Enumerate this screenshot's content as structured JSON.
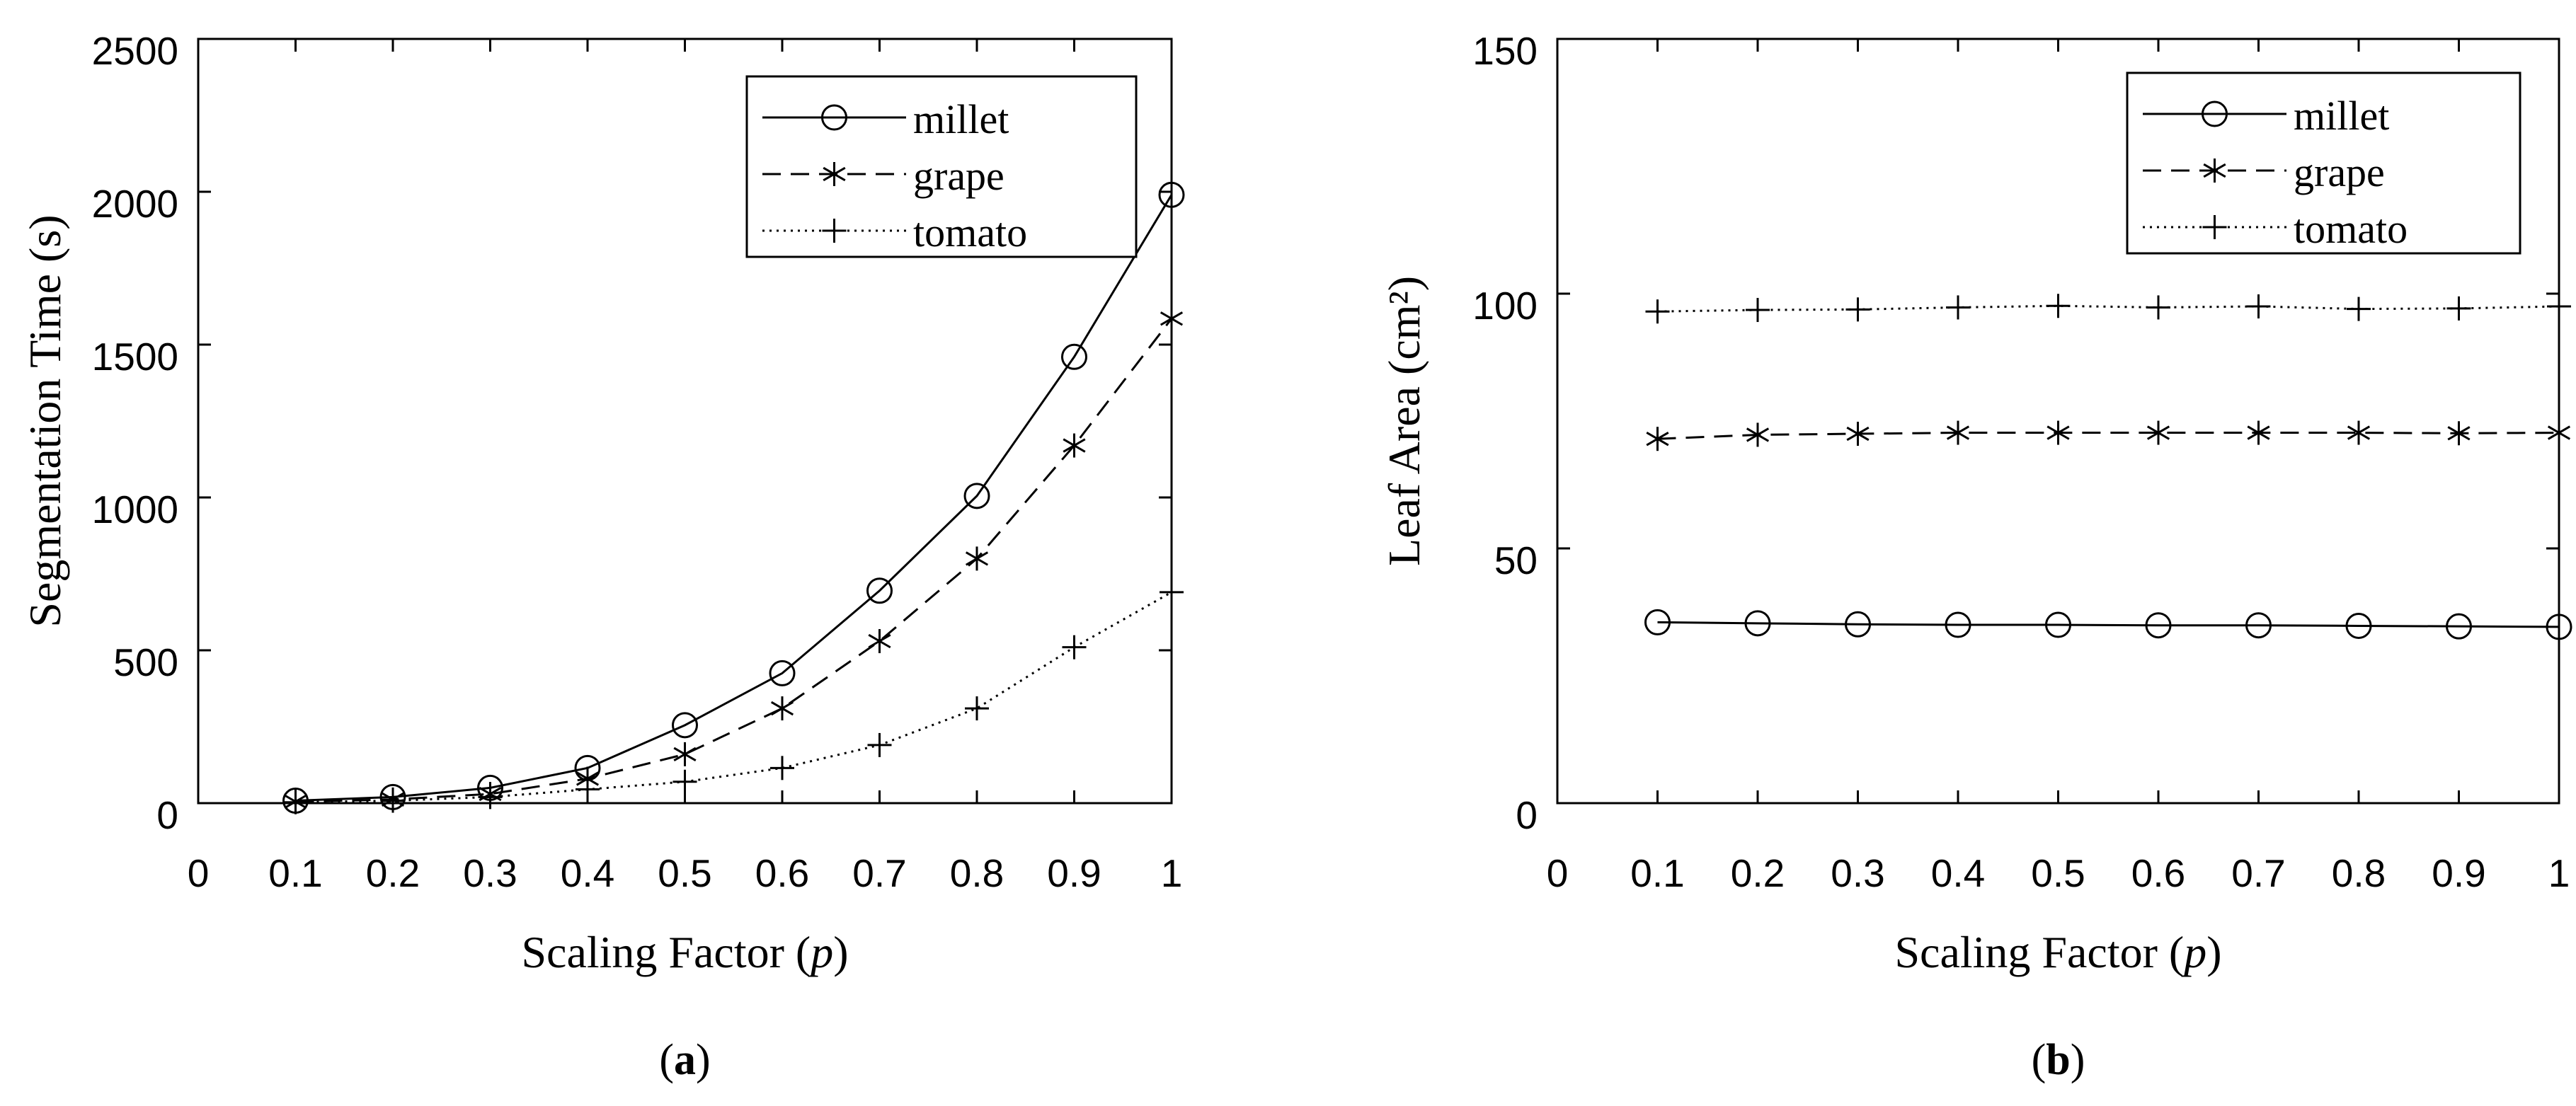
{
  "chart_data": [
    {
      "type": "line",
      "panel": "a",
      "caption_label": "a",
      "xlabel_prefix": "Scaling Factor (",
      "xlabel_var": "p",
      "xlabel_suffix": ")",
      "ylabel": "Segmentation Time (s)",
      "xlim": [
        0,
        1
      ],
      "ylim": [
        0,
        2500
      ],
      "xticks": [
        0,
        0.1,
        0.2,
        0.3,
        0.4,
        0.5,
        0.6,
        0.7,
        0.8,
        0.9,
        1
      ],
      "xtick_labels": [
        "0",
        "0.1",
        "0.2",
        "0.3",
        "0.4",
        "0.5",
        "0.6",
        "0.7",
        "0.8",
        "0.9",
        "1"
      ],
      "yticks": [
        0,
        500,
        1000,
        1500,
        2000,
        2500
      ],
      "ytick_labels": [
        "0",
        "500",
        "1000",
        "1500",
        "2000",
        "2500"
      ],
      "grid": false,
      "legend_position": "top-right",
      "x": [
        0.1,
        0.2,
        0.3,
        0.4,
        0.5,
        0.6,
        0.7,
        0.8,
        0.9,
        1.0
      ],
      "series": [
        {
          "name": "millet",
          "line": "solid",
          "marker": "circle",
          "values": [
            8,
            20,
            50,
            115,
            255,
            425,
            695,
            1005,
            1460,
            1990
          ]
        },
        {
          "name": "grape",
          "line": "dashed",
          "marker": "asterisk",
          "values": [
            5,
            12,
            30,
            80,
            160,
            310,
            530,
            800,
            1170,
            1585
          ]
        },
        {
          "name": "tomato",
          "line": "dotted",
          "marker": "plus",
          "values": [
            3,
            8,
            20,
            45,
            70,
            115,
            190,
            310,
            510,
            690
          ]
        }
      ]
    },
    {
      "type": "line",
      "panel": "b",
      "caption_label": "b",
      "xlabel_prefix": "Scaling Factor (",
      "xlabel_var": "p",
      "xlabel_suffix": ")",
      "ylabel": "Leaf Area (cm²)",
      "xlim": [
        0,
        1
      ],
      "ylim": [
        0,
        150
      ],
      "xticks": [
        0,
        0.1,
        0.2,
        0.3,
        0.4,
        0.5,
        0.6,
        0.7,
        0.8,
        0.9,
        1
      ],
      "xtick_labels": [
        "0",
        "0.1",
        "0.2",
        "0.3",
        "0.4",
        "0.5",
        "0.6",
        "0.7",
        "0.8",
        "0.9",
        "1"
      ],
      "yticks": [
        0,
        50,
        100,
        150
      ],
      "ytick_labels": [
        "0",
        "50",
        "100",
        "150"
      ],
      "grid": false,
      "legend_position": "top-right",
      "x": [
        0.1,
        0.2,
        0.3,
        0.4,
        0.5,
        0.6,
        0.7,
        0.8,
        0.9,
        1.0
      ],
      "series": [
        {
          "name": "millet",
          "line": "solid",
          "marker": "circle",
          "values": [
            35.5,
            35.3,
            35.1,
            35.0,
            35.0,
            34.9,
            34.9,
            34.8,
            34.7,
            34.6
          ]
        },
        {
          "name": "grape",
          "line": "dashed",
          "marker": "asterisk",
          "values": [
            71.5,
            72.3,
            72.5,
            72.7,
            72.7,
            72.7,
            72.7,
            72.7,
            72.6,
            72.7
          ]
        },
        {
          "name": "tomato",
          "line": "dotted",
          "marker": "plus",
          "values": [
            96.5,
            96.8,
            96.9,
            97.3,
            97.6,
            97.3,
            97.5,
            97.0,
            97.1,
            97.5
          ]
        }
      ]
    }
  ]
}
